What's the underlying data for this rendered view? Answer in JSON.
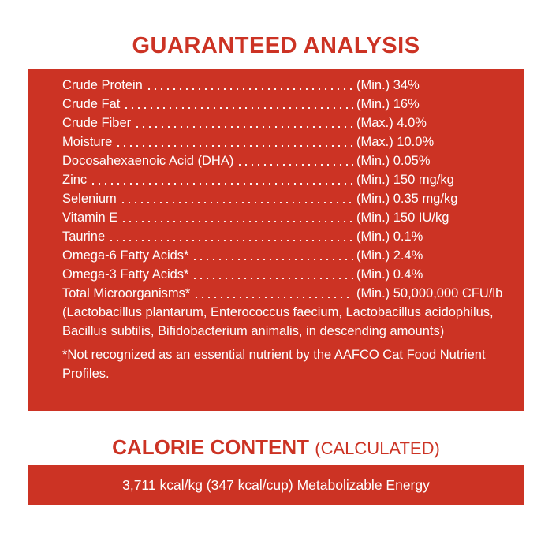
{
  "header": {
    "title": "GUARANTEED ANALYSIS"
  },
  "analysis": {
    "rows": [
      {
        "name": "Crude Protein",
        "value": "(Min.) 34%"
      },
      {
        "name": "Crude Fat",
        "value": "(Min.) 16%"
      },
      {
        "name": "Crude Fiber",
        "value": "(Max.) 4.0%"
      },
      {
        "name": "Moisture",
        "value": "(Max.) 10.0%"
      },
      {
        "name": "Docosahexaenoic Acid (DHA)",
        "value": "(Min.) 0.05%"
      },
      {
        "name": "Zinc",
        "value": "(Min.) 150 mg/kg"
      },
      {
        "name": "Selenium",
        "value": "(Min.) 0.35 mg/kg"
      },
      {
        "name": "Vitamin E",
        "value": "(Min.) 150 IU/kg"
      },
      {
        "name": "Taurine",
        "value": "(Min.) 0.1%"
      },
      {
        "name": "Omega-6 Fatty Acids*",
        "value": "(Min.) 2.4%"
      },
      {
        "name": "Omega-3 Fatty Acids*",
        "value": "(Min.) 0.4%"
      },
      {
        "name": "Total Microorganisms*",
        "value": "(Min.) 50,000,000 CFU/lb"
      }
    ],
    "note": "(Lactobacillus plantarum, Enterococcus faecium, Lactobacillus acidophilus, Bacillus subtilis, Bifidobacterium animalis, in descending amounts)",
    "footnote": "*Not recognized as an essential nutrient by the AAFCO Cat Food Nutrient Profiles."
  },
  "calorie": {
    "title": "CALORIE CONTENT",
    "qualifier": "(CALCULATED)",
    "text": "3,711 kcal/kg (347 kcal/cup) Metabolizable Energy"
  }
}
